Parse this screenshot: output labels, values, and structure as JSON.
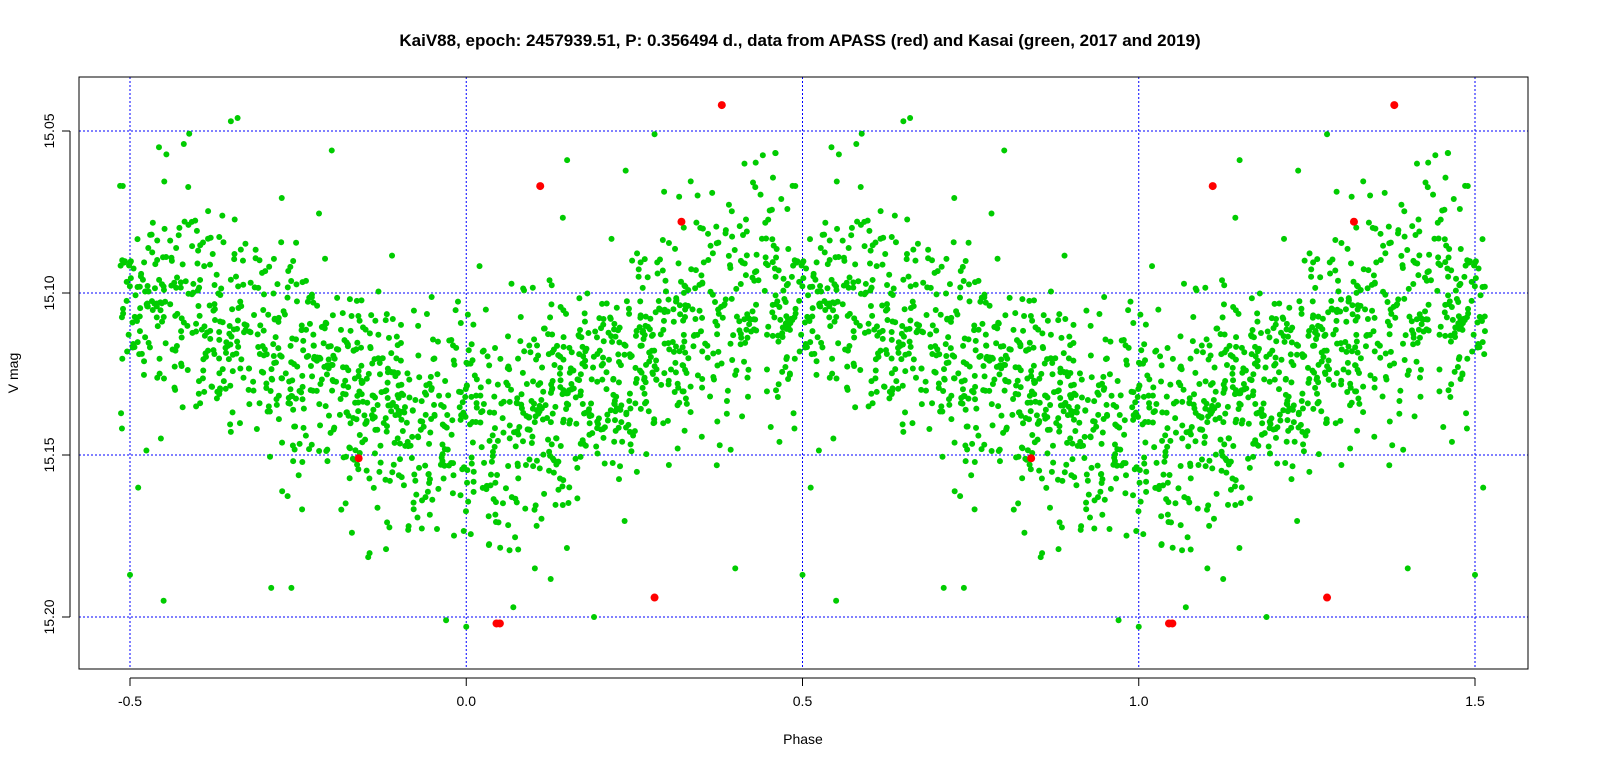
{
  "chart_data": {
    "type": "scatter",
    "title": "KaiV88, epoch: 2457939.51, P: 0.356494 d., data from APASS (red) and Kasai (green, 2017 and 2019)",
    "xlabel": "Phase",
    "ylabel": "V mag",
    "xlim": [
      -0.58,
      1.58
    ],
    "ylim": [
      15.216,
      15.033
    ],
    "y_inverted": true,
    "grid": true,
    "grid_color": "#0000ff",
    "x_ticks": [
      -0.5,
      0.0,
      0.5,
      1.0,
      1.5
    ],
    "x_tick_labels": [
      "-0.5",
      "0.0",
      "0.5",
      "1.0",
      "1.5"
    ],
    "y_ticks": [
      15.05,
      15.1,
      15.15,
      15.2
    ],
    "y_tick_labels": [
      "15.05",
      "15.10",
      "15.15",
      "15.20"
    ],
    "series": [
      {
        "color": "#00cc00",
        "model": {
          "mean": 15.122,
          "amplitude": 0.022,
          "min_phase": 0.0,
          "scatter": 0.022,
          "n_per_cycle": 1450
        },
        "values": [
          [
            -0.35,
            15.047
          ],
          [
            -0.34,
            15.046
          ],
          [
            -0.42,
            15.054
          ],
          [
            -0.2,
            15.056
          ],
          [
            0.28,
            15.051
          ],
          [
            0.15,
            15.059
          ],
          [
            0.46,
            15.095
          ],
          [
            -0.03,
            15.201
          ],
          [
            0.0,
            15.203
          ],
          [
            0.07,
            15.197
          ],
          [
            0.19,
            15.2
          ],
          [
            -0.17,
            15.174
          ],
          [
            -0.26,
            15.191
          ],
          [
            -0.29,
            15.191
          ],
          [
            0.4,
            15.185
          ],
          [
            0.5,
            15.187
          ],
          [
            -0.45,
            15.195
          ]
        ]
      },
      {
        "color": "#ff0000",
        "values": [
          [
            -0.16,
            15.151
          ],
          [
            0.045,
            15.202
          ],
          [
            0.05,
            15.202
          ],
          [
            0.11,
            15.067
          ],
          [
            0.28,
            15.194
          ],
          [
            0.32,
            15.078
          ],
          [
            0.38,
            15.042
          ]
        ]
      }
    ]
  }
}
